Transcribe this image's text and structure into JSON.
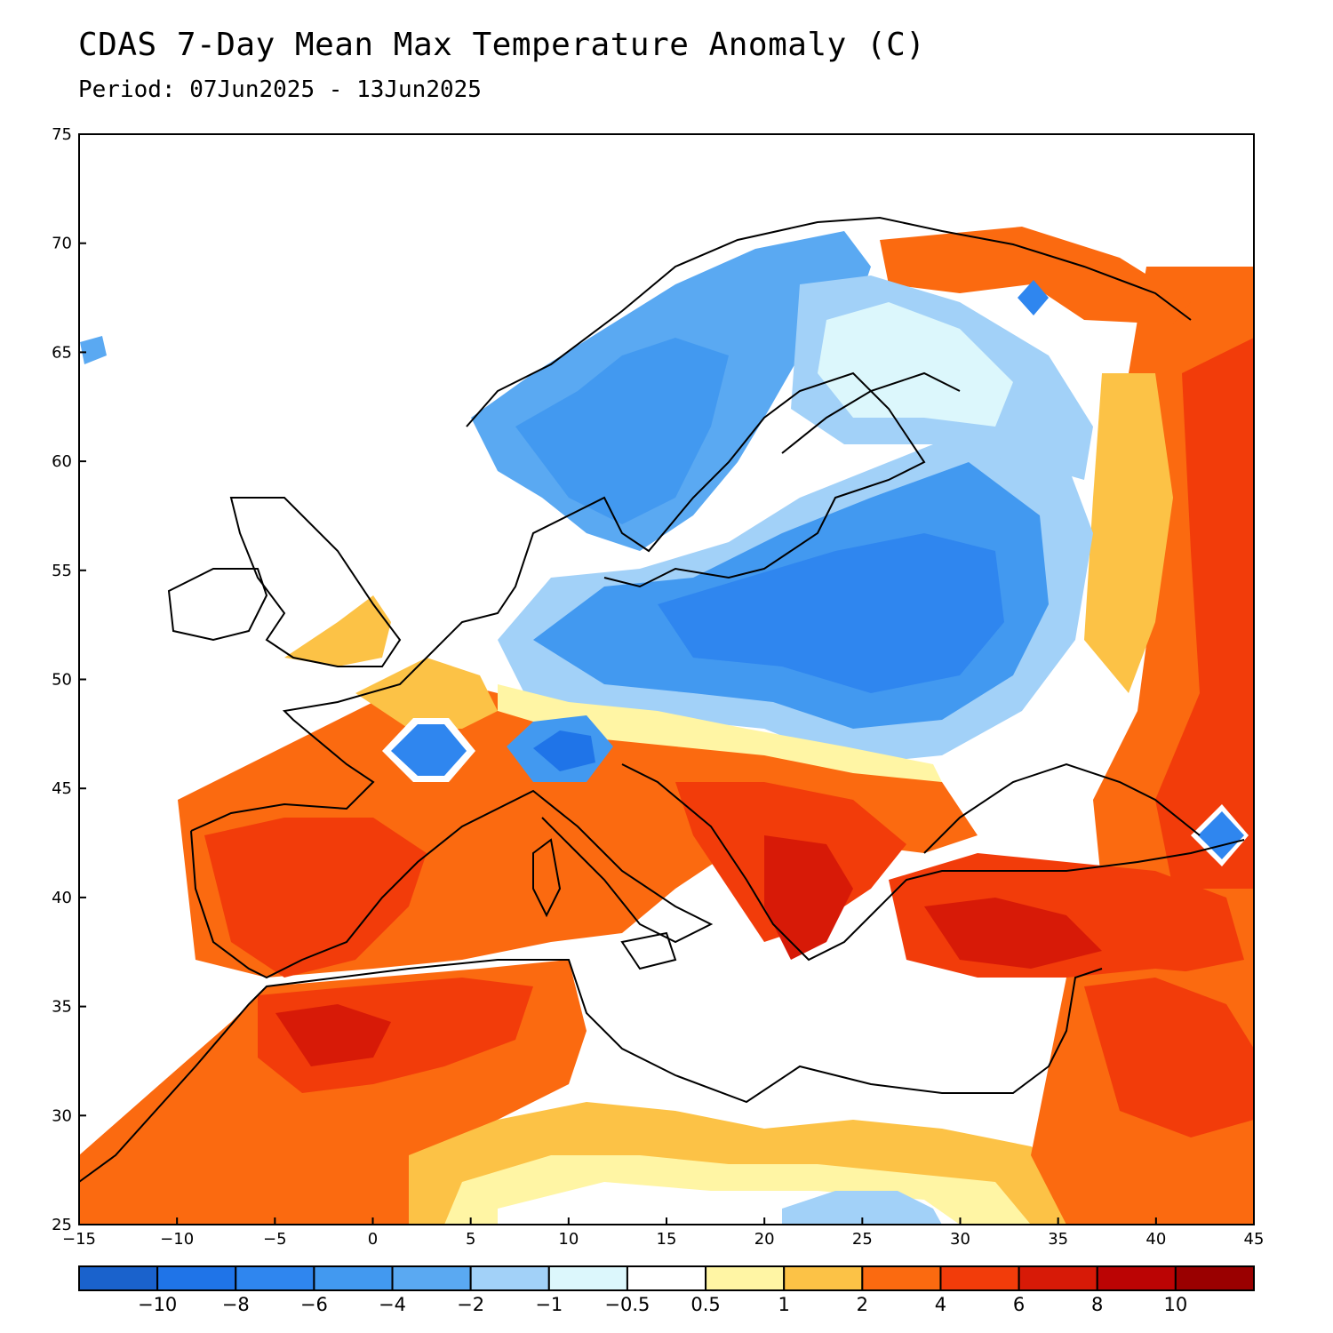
{
  "header": {
    "title": "CDAS 7-Day Mean Max Temperature Anomaly (C)",
    "period": "Period: 07Jun2025 - 13Jun2025"
  },
  "map": {
    "lon_range": [
      -15,
      45
    ],
    "lat_range": [
      25,
      75
    ],
    "x_ticks": [
      "-15",
      "-10",
      "-5",
      "0",
      "5",
      "10",
      "15",
      "20",
      "25",
      "30",
      "35",
      "40",
      "45"
    ],
    "y_ticks": [
      "25",
      "30",
      "35",
      "40",
      "45",
      "50",
      "55",
      "60",
      "65",
      "70",
      "75"
    ]
  },
  "colorbar": {
    "labels": [
      "-10",
      "-8",
      "-6",
      "-4",
      "-2",
      "-1",
      "-0.5",
      "0.5",
      "1",
      "2",
      "4",
      "6",
      "8",
      "10"
    ],
    "colors": [
      "#1a62cc",
      "#1f74e8",
      "#2f86ef",
      "#4299f0",
      "#5aa9f2",
      "#a2d1f8",
      "#dcf7fc",
      "#ffffff",
      "#fff5a4",
      "#fcc246",
      "#fb6a10",
      "#f23c0a",
      "#d71a07",
      "#bb0404",
      "#9a0000"
    ]
  }
}
